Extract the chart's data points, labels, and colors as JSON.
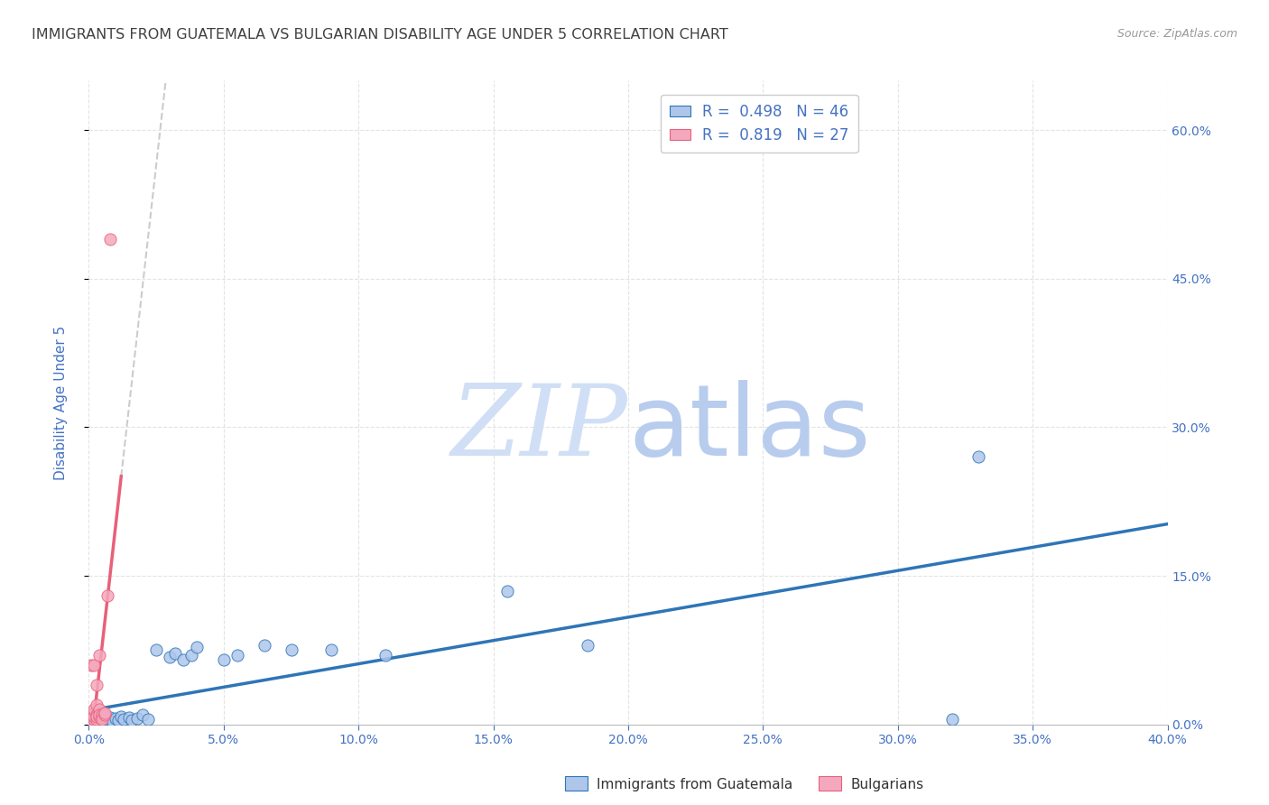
{
  "title": "IMMIGRANTS FROM GUATEMALA VS BULGARIAN DISABILITY AGE UNDER 5 CORRELATION CHART",
  "source": "Source: ZipAtlas.com",
  "ylabel_label": "Disability Age Under 5",
  "legend_label1": "Immigrants from Guatemala",
  "legend_label2": "Bulgarians",
  "R1": 0.498,
  "N1": 46,
  "R2": 0.819,
  "N2": 27,
  "color1": "#aec6ea",
  "color2": "#f4a8be",
  "line_color1": "#2e75b6",
  "line_color2": "#e8607a",
  "xlim": [
    0.0,
    0.4
  ],
  "ylim": [
    0.0,
    0.65
  ],
  "xtick_values": [
    0.0,
    0.05,
    0.1,
    0.15,
    0.2,
    0.25,
    0.3,
    0.35,
    0.4
  ],
  "ytick_values": [
    0.0,
    0.15,
    0.3,
    0.45,
    0.6
  ],
  "guatemala_x": [
    0.0005,
    0.001,
    0.001,
    0.0015,
    0.002,
    0.002,
    0.002,
    0.003,
    0.003,
    0.003,
    0.004,
    0.004,
    0.004,
    0.005,
    0.005,
    0.006,
    0.006,
    0.007,
    0.008,
    0.008,
    0.009,
    0.01,
    0.011,
    0.012,
    0.013,
    0.015,
    0.016,
    0.018,
    0.02,
    0.022,
    0.025,
    0.03,
    0.032,
    0.035,
    0.038,
    0.04,
    0.05,
    0.055,
    0.065,
    0.075,
    0.09,
    0.11,
    0.155,
    0.185,
    0.32,
    0.33
  ],
  "guatemala_y": [
    0.005,
    0.003,
    0.008,
    0.004,
    0.006,
    0.01,
    0.002,
    0.004,
    0.007,
    0.012,
    0.003,
    0.005,
    0.008,
    0.004,
    0.006,
    0.003,
    0.01,
    0.005,
    0.004,
    0.007,
    0.003,
    0.006,
    0.004,
    0.008,
    0.005,
    0.007,
    0.004,
    0.006,
    0.01,
    0.005,
    0.075,
    0.068,
    0.072,
    0.065,
    0.07,
    0.078,
    0.065,
    0.07,
    0.08,
    0.075,
    0.075,
    0.07,
    0.135,
    0.08,
    0.005,
    0.27
  ],
  "bulgarian_x": [
    0.0003,
    0.0005,
    0.0008,
    0.001,
    0.001,
    0.001,
    0.0015,
    0.002,
    0.002,
    0.002,
    0.002,
    0.003,
    0.003,
    0.003,
    0.003,
    0.003,
    0.004,
    0.004,
    0.004,
    0.004,
    0.005,
    0.005,
    0.005,
    0.006,
    0.006,
    0.007,
    0.008
  ],
  "bulgarian_y": [
    0.005,
    0.003,
    0.008,
    0.003,
    0.06,
    0.01,
    0.008,
    0.005,
    0.008,
    0.015,
    0.06,
    0.005,
    0.01,
    0.02,
    0.04,
    0.008,
    0.015,
    0.008,
    0.01,
    0.07,
    0.008,
    0.01,
    0.005,
    0.01,
    0.012,
    0.13,
    0.49
  ],
  "trend1_x_start": 0.0,
  "trend1_x_end": 0.4,
  "trend2_solid_end": 0.012,
  "trend2_dash_end": 0.042,
  "background_color": "#ffffff",
  "grid_color": "#e0e0e0",
  "axis_label_color": "#4472c4",
  "title_color": "#404040",
  "wm_zip_color": "#d0dff5",
  "wm_atlas_color": "#b8ccee"
}
